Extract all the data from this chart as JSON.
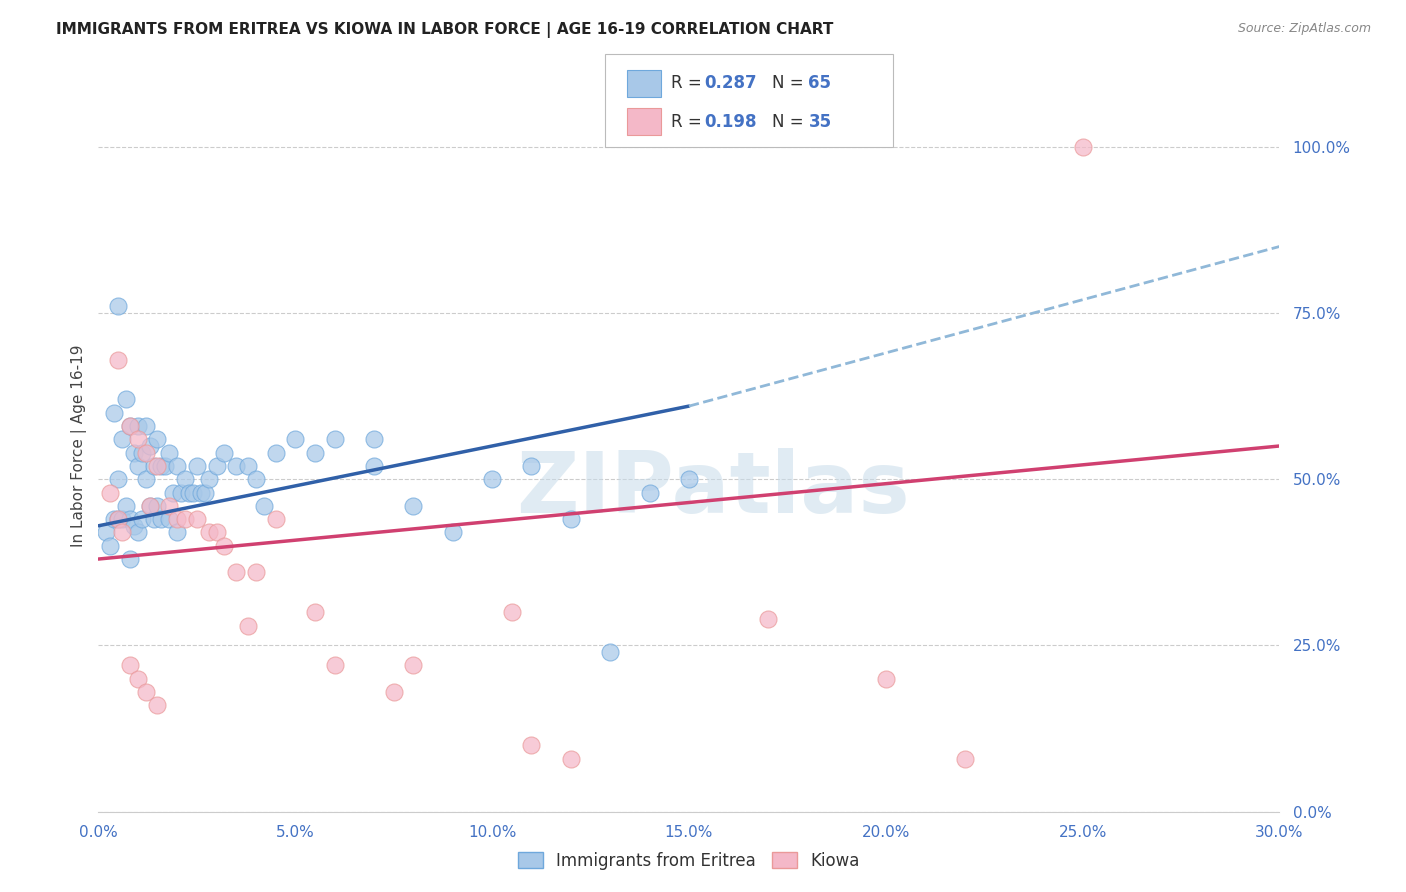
{
  "title": "IMMIGRANTS FROM ERITREA VS KIOWA IN LABOR FORCE | AGE 16-19 CORRELATION CHART",
  "source": "Source: ZipAtlas.com",
  "ylabel_label": "In Labor Force | Age 16-19",
  "legend_label1": "Immigrants from Eritrea",
  "legend_label2": "Kiowa",
  "R1": "0.287",
  "N1": "65",
  "R2": "0.198",
  "N2": "35",
  "color_blue_face": "#a8c8e8",
  "color_blue_edge": "#6fa8dc",
  "color_pink_face": "#f4b8c8",
  "color_pink_edge": "#ea9999",
  "line_color_blue_solid": "#3060a8",
  "line_color_blue_dash": "#90b8d8",
  "line_color_pink": "#d04070",
  "watermark_color": "#c8dcea",
  "grid_color": "#cccccc",
  "tick_color": "#4472c4",
  "title_color": "#222222",
  "source_color": "#888888",
  "xlim": [
    0,
    30
  ],
  "ylim": [
    0,
    110
  ],
  "xlabel_ticks": [
    0,
    5,
    10,
    15,
    20,
    25,
    30
  ],
  "ylabel_ticks": [
    0,
    25,
    50,
    75,
    100
  ],
  "blue_x": [
    0.2,
    0.3,
    0.4,
    0.4,
    0.5,
    0.5,
    0.5,
    0.6,
    0.6,
    0.7,
    0.7,
    0.8,
    0.8,
    0.9,
    0.9,
    1.0,
    1.0,
    1.0,
    1.1,
    1.1,
    1.2,
    1.2,
    1.3,
    1.3,
    1.4,
    1.4,
    1.5,
    1.5,
    1.6,
    1.6,
    1.7,
    1.8,
    1.8,
    1.9,
    2.0,
    2.0,
    2.1,
    2.2,
    2.3,
    2.4,
    2.5,
    2.6,
    2.7,
    2.8,
    3.0,
    3.2,
    3.5,
    3.8,
    4.0,
    4.5,
    5.0,
    5.5,
    6.0,
    7.0,
    8.0,
    9.0,
    10.0,
    11.0,
    12.0,
    13.0,
    14.0,
    15.0,
    7.0,
    4.2,
    0.8
  ],
  "blue_y": [
    42,
    40,
    60,
    44,
    76,
    50,
    44,
    56,
    44,
    62,
    46,
    58,
    44,
    54,
    43,
    58,
    52,
    42,
    54,
    44,
    58,
    50,
    55,
    46,
    52,
    44,
    56,
    46,
    52,
    44,
    52,
    54,
    44,
    48,
    52,
    42,
    48,
    50,
    48,
    48,
    52,
    48,
    48,
    50,
    52,
    54,
    52,
    52,
    50,
    54,
    56,
    54,
    56,
    52,
    46,
    42,
    50,
    52,
    44,
    24,
    48,
    50,
    56,
    46,
    38
  ],
  "pink_x": [
    0.3,
    0.5,
    0.5,
    0.8,
    0.8,
    1.0,
    1.0,
    1.2,
    1.2,
    1.5,
    1.5,
    1.8,
    2.0,
    2.2,
    2.5,
    2.8,
    3.0,
    3.2,
    3.5,
    4.0,
    4.5,
    5.5,
    6.0,
    7.5,
    8.0,
    10.5,
    11.0,
    12.0,
    17.0,
    20.0,
    22.0,
    25.0,
    0.6,
    1.3,
    3.8
  ],
  "pink_y": [
    48,
    68,
    44,
    58,
    22,
    56,
    20,
    54,
    18,
    52,
    16,
    46,
    44,
    44,
    44,
    42,
    42,
    40,
    36,
    36,
    44,
    30,
    22,
    18,
    22,
    30,
    10,
    8,
    29,
    20,
    8,
    100,
    42,
    46,
    28
  ],
  "blue_line_x0": 0,
  "blue_line_y0": 43,
  "blue_line_x1": 15,
  "blue_line_y1": 61,
  "blue_dash_x0": 15,
  "blue_dash_y0": 61,
  "blue_dash_x1": 30,
  "blue_dash_y1": 85,
  "pink_line_x0": 0,
  "pink_line_y0": 38,
  "pink_line_x1": 30,
  "pink_line_y1": 55
}
